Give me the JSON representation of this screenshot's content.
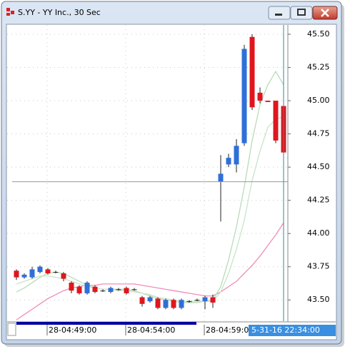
{
  "window": {
    "title": "S.YY - YY Inc., 30 Sec"
  },
  "chart_data": {
    "type": "candlestick",
    "categories": [
      null,
      null,
      null,
      null,
      "28-04:49:00",
      null,
      null,
      null,
      null,
      null,
      null,
      null,
      null,
      null,
      "28-04:54:00",
      null,
      null,
      null,
      null,
      null,
      null,
      null,
      null,
      null,
      "28-04:59:00",
      null,
      null,
      null,
      null,
      null,
      null,
      null,
      null,
      null,
      null
    ],
    "open": [
      43.72,
      43.67,
      43.67,
      43.71,
      43.73,
      43.71,
      43.7,
      43.63,
      43.6,
      43.55,
      43.6,
      43.57,
      43.56,
      43.58,
      43.59,
      43.58,
      43.52,
      43.49,
      43.51,
      43.44,
      43.5,
      43.44,
      43.49,
      43.5,
      43.49,
      43.52,
      44.39,
      44.52,
      44.52,
      44.68,
      45.48,
      45.06,
      45.0,
      45.0,
      44.96
    ],
    "high": [
      43.73,
      43.7,
      43.75,
      43.76,
      43.74,
      43.72,
      43.71,
      43.64,
      43.61,
      43.64,
      43.61,
      43.58,
      43.6,
      43.59,
      43.6,
      43.59,
      43.53,
      43.53,
      43.52,
      43.51,
      43.51,
      43.51,
      43.5,
      43.51,
      43.53,
      43.54,
      44.59,
      44.6,
      44.71,
      45.42,
      45.5,
      45.1,
      45.0,
      45.0,
      44.97
    ],
    "low": [
      43.65,
      43.66,
      43.66,
      43.7,
      43.69,
      43.7,
      43.64,
      43.55,
      43.54,
      43.54,
      43.55,
      43.56,
      43.55,
      43.57,
      43.54,
      43.57,
      43.45,
      43.48,
      43.43,
      43.43,
      43.43,
      43.43,
      43.48,
      43.49,
      43.43,
      43.44,
      44.09,
      44.5,
      44.46,
      44.66,
      44.93,
      44.98,
      44.99,
      44.68,
      44.6
    ],
    "close": [
      43.67,
      43.69,
      43.73,
      43.75,
      43.7,
      43.71,
      43.66,
      43.57,
      43.55,
      43.63,
      43.56,
      43.57,
      43.59,
      43.58,
      43.55,
      43.58,
      43.47,
      43.52,
      43.44,
      43.5,
      43.44,
      43.5,
      43.49,
      43.5,
      43.52,
      43.48,
      44.45,
      44.57,
      44.66,
      45.39,
      44.95,
      45.0,
      44.99,
      44.7,
      44.61
    ],
    "up_color": "#2e6fd8",
    "down_color": "#e0161c",
    "moving_averages": [
      {
        "color": "#f08cb8",
        "values": [
          43.35,
          43.39,
          43.43,
          43.47,
          43.51,
          43.54,
          43.57,
          43.59,
          43.6,
          43.61,
          43.61,
          43.62,
          43.62,
          43.62,
          43.62,
          43.62,
          43.61,
          43.6,
          43.59,
          43.58,
          43.57,
          43.56,
          43.55,
          43.54,
          43.53,
          43.53,
          43.56,
          43.6,
          43.64,
          43.7,
          43.76,
          43.83,
          43.91,
          43.99,
          44.08
        ]
      },
      {
        "color": "#b7dcb7",
        "values": [
          43.56,
          43.59,
          43.63,
          43.67,
          43.7,
          43.71,
          43.7,
          43.67,
          43.64,
          43.61,
          43.59,
          43.58,
          43.58,
          43.58,
          43.58,
          43.57,
          43.55,
          43.53,
          43.51,
          43.5,
          43.49,
          43.48,
          43.48,
          43.48,
          43.49,
          43.5,
          43.6,
          43.8,
          44.05,
          44.35,
          44.7,
          44.97,
          45.12,
          45.22,
          45.12
        ]
      },
      {
        "color": "#c8e4c8",
        "values": [
          43.62,
          43.64,
          43.66,
          43.68,
          43.68,
          43.67,
          43.66,
          43.64,
          43.62,
          43.6,
          43.59,
          43.58,
          43.58,
          43.57,
          43.57,
          43.56,
          43.55,
          43.54,
          43.52,
          43.51,
          43.5,
          43.49,
          43.49,
          43.49,
          43.49,
          43.49,
          43.56,
          43.7,
          43.88,
          44.1,
          44.4,
          44.62,
          44.8,
          44.86,
          44.88
        ]
      }
    ],
    "ylim": [
      43.34,
      45.57
    ],
    "yticks": [
      {
        "value": 45.5,
        "label": "45.50"
      },
      {
        "value": 45.25,
        "label": "45.25"
      },
      {
        "value": 45,
        "label": "45.00"
      },
      {
        "value": 44.75,
        "label": "44.75"
      },
      {
        "value": 44.5,
        "label": "44.50"
      },
      {
        "value": 44.25,
        "label": "44.25"
      },
      {
        "value": 44,
        "label": "44.00"
      },
      {
        "value": 43.75,
        "label": "43.75"
      },
      {
        "value": 43.5,
        "label": "43.50"
      }
    ],
    "grid": true,
    "crosshair": {
      "price": 44.39,
      "index": 34,
      "label": "5-31-16 22:34:00"
    }
  }
}
